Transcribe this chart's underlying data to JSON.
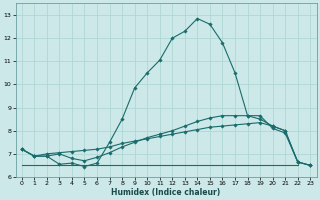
{
  "xlabel": "Humidex (Indice chaleur)",
  "bg_color": "#cce8e8",
  "grid_color": "#aad4d0",
  "line_color": "#1a6b6b",
  "xlim": [
    -0.5,
    23.5
  ],
  "ylim": [
    6.0,
    13.5
  ],
  "xticks": [
    0,
    1,
    2,
    3,
    4,
    5,
    6,
    7,
    8,
    9,
    10,
    11,
    12,
    13,
    14,
    15,
    16,
    17,
    18,
    19,
    20,
    21,
    22,
    23
  ],
  "yticks": [
    6,
    7,
    8,
    9,
    10,
    11,
    12,
    13
  ],
  "line1_x": [
    0,
    1,
    2,
    3,
    4,
    5,
    6,
    7,
    8,
    9,
    10,
    11,
    12,
    13,
    14,
    15,
    16,
    17,
    18,
    19,
    20,
    21,
    22,
    23
  ],
  "line1_y": [
    7.2,
    6.9,
    6.9,
    6.55,
    6.6,
    6.45,
    6.6,
    7.5,
    8.5,
    9.85,
    10.5,
    11.05,
    12.0,
    12.3,
    12.85,
    12.6,
    11.8,
    10.5,
    8.65,
    8.65,
    8.1,
    7.9,
    6.65,
    6.5
  ],
  "line2_x": [
    0,
    1,
    2,
    3,
    4,
    5,
    6,
    7,
    8,
    9,
    10,
    11,
    12,
    13,
    14,
    15,
    16,
    17,
    18,
    19,
    20,
    21,
    22,
    23
  ],
  "line2_y": [
    7.2,
    6.9,
    6.9,
    7.0,
    6.8,
    6.7,
    6.85,
    7.05,
    7.3,
    7.5,
    7.7,
    7.85,
    8.0,
    8.2,
    8.4,
    8.55,
    8.65,
    8.65,
    8.65,
    8.5,
    8.2,
    8.0,
    6.65,
    6.5
  ],
  "line3_x": [
    0,
    1,
    2,
    3,
    4,
    5,
    6,
    7,
    8,
    9,
    10,
    11,
    12,
    13,
    14,
    15,
    16,
    17,
    18,
    19,
    20,
    21,
    22,
    23
  ],
  "line3_y": [
    7.2,
    6.9,
    7.0,
    7.05,
    7.1,
    7.15,
    7.2,
    7.3,
    7.45,
    7.55,
    7.65,
    7.75,
    7.85,
    7.95,
    8.05,
    8.15,
    8.2,
    8.25,
    8.3,
    8.35,
    8.2,
    8.0,
    6.65,
    6.5
  ],
  "line4_x": [
    0,
    22
  ],
  "line4_y": [
    6.5,
    6.5
  ]
}
